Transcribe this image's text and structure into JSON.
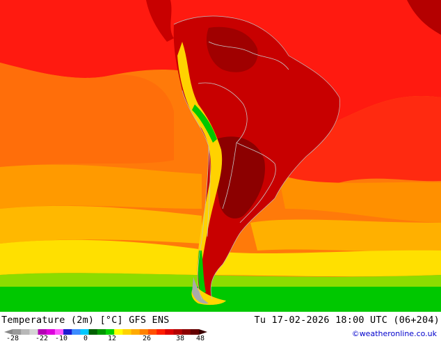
{
  "title": {
    "left": "Temperature (2m) [°C] GFS ENS",
    "right": "Tu 17-02-2026 18:00 UTC (06+204)"
  },
  "credit": "©weatheronline.co.uk",
  "legend": {
    "ticks": [
      "-28",
      "-22",
      "-10",
      "0",
      "12",
      "26",
      "38",
      "48"
    ],
    "colors": [
      "#9a9a9a",
      "#b8b8b8",
      "#d5d5d5",
      "#b400b4",
      "#dc00dc",
      "#ff55ff",
      "#1c1cd0",
      "#3c8cff",
      "#00c8ff",
      "#006000",
      "#009600",
      "#00d200",
      "#ffff00",
      "#ffd200",
      "#ffaa00",
      "#ff8200",
      "#ff5000",
      "#ff1e00",
      "#dc0000",
      "#b40000",
      "#8c0000",
      "#640000"
    ]
  },
  "map_colors": {
    "ocean_hot": "#ff1414",
    "ocean_warm": "#ff6e0a",
    "ocean_mild": "#ffa000",
    "ocean_cool": "#ffd700",
    "ocean_cold": "#00be00",
    "land_hot": "#c80000",
    "land_very_hot": "#8c0000",
    "andes_cool": "#ffd700",
    "andes_cold": "#00c800",
    "ice": "#aaaaaa",
    "border": "#c8c8c8"
  }
}
